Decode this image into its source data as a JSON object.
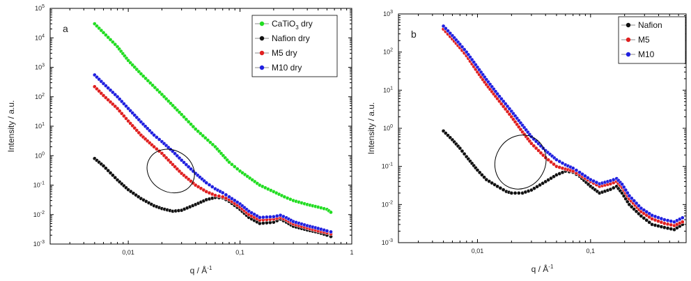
{
  "chart_data": [
    {
      "type": "scatter",
      "panel_label": "a",
      "xscale": "log",
      "yscale": "log",
      "xlim": [
        0.002,
        1
      ],
      "ylim": [
        0.001,
        100000
      ],
      "xlabel": "q / Å",
      "xlabel_sup": "-1",
      "ylabel": "Intensity / a.u.",
      "x_ticks": [
        {
          "value": 0.01,
          "label": "0,01"
        },
        {
          "value": 0.1,
          "label": "0,1"
        },
        {
          "value": 1,
          "label": "1"
        }
      ],
      "y_ticks": [
        {
          "value": 0.001,
          "base": "10",
          "exp": "-3"
        },
        {
          "value": 0.01,
          "base": "10",
          "exp": "-2"
        },
        {
          "value": 0.1,
          "base": "10",
          "exp": "-1"
        },
        {
          "value": 1,
          "base": "10",
          "exp": "0"
        },
        {
          "value": 10,
          "base": "10",
          "exp": "1"
        },
        {
          "value": 100,
          "base": "10",
          "exp": "2"
        },
        {
          "value": 1000,
          "base": "10",
          "exp": "3"
        },
        {
          "value": 10000,
          "base": "10",
          "exp": "4"
        },
        {
          "value": 100000,
          "base": "10",
          "exp": "5"
        }
      ],
      "legend_position": "top-right",
      "annotation": "ellipse",
      "ellipse": {
        "cx": 0.024,
        "cy": 0.3,
        "rx_decades": 0.22,
        "ry_decades": 1.55,
        "angle": 30
      },
      "series": [
        {
          "name": "CaTiO",
          "name_sub": "3",
          "name_suffix": " dry",
          "color": "#22dd22",
          "points": [
            [
              0.005,
              30000
            ],
            [
              0.006,
              15000
            ],
            [
              0.008,
              5000
            ],
            [
              0.01,
              1700
            ],
            [
              0.013,
              600
            ],
            [
              0.02,
              120
            ],
            [
              0.03,
              25
            ],
            [
              0.04,
              8
            ],
            [
              0.06,
              2
            ],
            [
              0.08,
              0.6
            ],
            [
              0.1,
              0.3
            ],
            [
              0.15,
              0.1
            ],
            [
              0.2,
              0.06
            ],
            [
              0.25,
              0.04
            ],
            [
              0.3,
              0.03
            ],
            [
              0.4,
              0.022
            ],
            [
              0.5,
              0.018
            ],
            [
              0.6,
              0.015
            ],
            [
              0.65,
              0.012
            ]
          ]
        },
        {
          "name": "Nafion dry",
          "color": "#111111",
          "points": [
            [
              0.005,
              0.8
            ],
            [
              0.006,
              0.45
            ],
            [
              0.008,
              0.15
            ],
            [
              0.01,
              0.07
            ],
            [
              0.013,
              0.035
            ],
            [
              0.017,
              0.02
            ],
            [
              0.02,
              0.016
            ],
            [
              0.025,
              0.013
            ],
            [
              0.03,
              0.014
            ],
            [
              0.04,
              0.022
            ],
            [
              0.05,
              0.032
            ],
            [
              0.06,
              0.038
            ],
            [
              0.07,
              0.037
            ],
            [
              0.08,
              0.028
            ],
            [
              0.1,
              0.015
            ],
            [
              0.12,
              0.008
            ],
            [
              0.15,
              0.005
            ],
            [
              0.2,
              0.0055
            ],
            [
              0.23,
              0.007
            ],
            [
              0.26,
              0.0055
            ],
            [
              0.3,
              0.004
            ],
            [
              0.4,
              0.003
            ],
            [
              0.5,
              0.0025
            ],
            [
              0.6,
              0.002
            ],
            [
              0.65,
              0.0018
            ]
          ]
        },
        {
          "name": "M5 dry",
          "color": "#e02020",
          "points": [
            [
              0.005,
              220
            ],
            [
              0.006,
              110
            ],
            [
              0.008,
              40
            ],
            [
              0.01,
              15
            ],
            [
              0.013,
              5
            ],
            [
              0.017,
              2
            ],
            [
              0.02,
              1.2
            ],
            [
              0.025,
              0.5
            ],
            [
              0.03,
              0.25
            ],
            [
              0.04,
              0.1
            ],
            [
              0.05,
              0.06
            ],
            [
              0.06,
              0.045
            ],
            [
              0.07,
              0.04
            ],
            [
              0.08,
              0.032
            ],
            [
              0.1,
              0.018
            ],
            [
              0.12,
              0.01
            ],
            [
              0.15,
              0.0065
            ],
            [
              0.2,
              0.007
            ],
            [
              0.23,
              0.008
            ],
            [
              0.26,
              0.0065
            ],
            [
              0.3,
              0.0048
            ],
            [
              0.4,
              0.0035
            ],
            [
              0.5,
              0.0028
            ],
            [
              0.6,
              0.0024
            ],
            [
              0.65,
              0.0022
            ]
          ]
        },
        {
          "name": "M10 dry",
          "color": "#2020e0",
          "points": [
            [
              0.005,
              550
            ],
            [
              0.006,
              280
            ],
            [
              0.008,
              100
            ],
            [
              0.01,
              40
            ],
            [
              0.013,
              14
            ],
            [
              0.017,
              5
            ],
            [
              0.02,
              3
            ],
            [
              0.025,
              1.4
            ],
            [
              0.03,
              0.7
            ],
            [
              0.04,
              0.25
            ],
            [
              0.05,
              0.12
            ],
            [
              0.06,
              0.075
            ],
            [
              0.07,
              0.055
            ],
            [
              0.08,
              0.04
            ],
            [
              0.1,
              0.023
            ],
            [
              0.12,
              0.013
            ],
            [
              0.15,
              0.008
            ],
            [
              0.2,
              0.0085
            ],
            [
              0.23,
              0.0095
            ],
            [
              0.26,
              0.0078
            ],
            [
              0.3,
              0.0058
            ],
            [
              0.4,
              0.0042
            ],
            [
              0.5,
              0.0034
            ],
            [
              0.6,
              0.0028
            ],
            [
              0.65,
              0.0026
            ]
          ]
        }
      ]
    },
    {
      "type": "scatter",
      "panel_label": "b",
      "xscale": "log",
      "yscale": "log",
      "xlim": [
        0.002,
        0.7
      ],
      "ylim": [
        0.001,
        1000
      ],
      "xlabel": "q / Å",
      "xlabel_sup": "-1",
      "ylabel": "Intensity / a.u.",
      "x_ticks": [
        {
          "value": 0.01,
          "label": "0,01"
        },
        {
          "value": 0.1,
          "label": "0,1"
        }
      ],
      "y_ticks": [
        {
          "value": 0.001,
          "base": "10",
          "exp": "-3"
        },
        {
          "value": 0.01,
          "base": "10",
          "exp": "-2"
        },
        {
          "value": 0.1,
          "base": "10",
          "exp": "-1"
        },
        {
          "value": 1,
          "base": "10",
          "exp": "0"
        },
        {
          "value": 10,
          "base": "10",
          "exp": "1"
        },
        {
          "value": 100,
          "base": "10",
          "exp": "2"
        },
        {
          "value": 1000,
          "base": "10",
          "exp": "3"
        }
      ],
      "legend_position": "top-right",
      "annotation": "ellipse",
      "ellipse": {
        "cx": 0.024,
        "cy": 0.13,
        "rx_decades": 0.22,
        "ry_decades": 1.6,
        "angle": 30
      },
      "series": [
        {
          "name": "Nafion",
          "color": "#111111",
          "points": [
            [
              0.005,
              0.85
            ],
            [
              0.006,
              0.5
            ],
            [
              0.007,
              0.3
            ],
            [
              0.008,
              0.18
            ],
            [
              0.01,
              0.08
            ],
            [
              0.012,
              0.045
            ],
            [
              0.015,
              0.03
            ],
            [
              0.018,
              0.022
            ],
            [
              0.02,
              0.02
            ],
            [
              0.025,
              0.02
            ],
            [
              0.03,
              0.024
            ],
            [
              0.04,
              0.04
            ],
            [
              0.05,
              0.06
            ],
            [
              0.06,
              0.075
            ],
            [
              0.07,
              0.07
            ],
            [
              0.08,
              0.055
            ],
            [
              0.1,
              0.03
            ],
            [
              0.12,
              0.02
            ],
            [
              0.15,
              0.025
            ],
            [
              0.17,
              0.03
            ],
            [
              0.19,
              0.02
            ],
            [
              0.22,
              0.01
            ],
            [
              0.28,
              0.005
            ],
            [
              0.35,
              0.003
            ],
            [
              0.45,
              0.0025
            ],
            [
              0.55,
              0.0022
            ],
            [
              0.65,
              0.003
            ]
          ]
        },
        {
          "name": "M5",
          "color": "#e02020",
          "points": [
            [
              0.005,
              400
            ],
            [
              0.006,
              220
            ],
            [
              0.007,
              130
            ],
            [
              0.008,
              80
            ],
            [
              0.01,
              30
            ],
            [
              0.012,
              14
            ],
            [
              0.015,
              6
            ],
            [
              0.02,
              2
            ],
            [
              0.025,
              0.8
            ],
            [
              0.03,
              0.4
            ],
            [
              0.04,
              0.17
            ],
            [
              0.05,
              0.1
            ],
            [
              0.06,
              0.085
            ],
            [
              0.07,
              0.075
            ],
            [
              0.08,
              0.06
            ],
            [
              0.1,
              0.04
            ],
            [
              0.12,
              0.03
            ],
            [
              0.15,
              0.035
            ],
            [
              0.17,
              0.04
            ],
            [
              0.19,
              0.028
            ],
            [
              0.22,
              0.014
            ],
            [
              0.28,
              0.0065
            ],
            [
              0.35,
              0.0042
            ],
            [
              0.45,
              0.0032
            ],
            [
              0.55,
              0.0028
            ],
            [
              0.65,
              0.0035
            ]
          ]
        },
        {
          "name": "M10",
          "color": "#2020e0",
          "points": [
            [
              0.005,
              480
            ],
            [
              0.006,
              270
            ],
            [
              0.007,
              160
            ],
            [
              0.008,
              100
            ],
            [
              0.01,
              40
            ],
            [
              0.012,
              19
            ],
            [
              0.015,
              8
            ],
            [
              0.02,
              2.8
            ],
            [
              0.025,
              1.2
            ],
            [
              0.03,
              0.6
            ],
            [
              0.04,
              0.26
            ],
            [
              0.05,
              0.15
            ],
            [
              0.06,
              0.11
            ],
            [
              0.07,
              0.09
            ],
            [
              0.08,
              0.07
            ],
            [
              0.1,
              0.045
            ],
            [
              0.12,
              0.035
            ],
            [
              0.15,
              0.042
            ],
            [
              0.17,
              0.048
            ],
            [
              0.19,
              0.034
            ],
            [
              0.22,
              0.017
            ],
            [
              0.28,
              0.008
            ],
            [
              0.35,
              0.0052
            ],
            [
              0.45,
              0.004
            ],
            [
              0.55,
              0.0035
            ],
            [
              0.65,
              0.0045
            ]
          ]
        }
      ]
    }
  ]
}
